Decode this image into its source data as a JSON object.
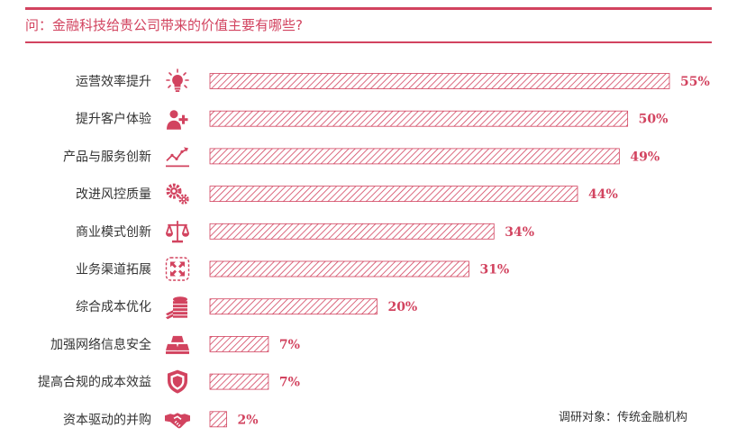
{
  "question": "问：金融科技给贵公司带来的价值主要有哪些?",
  "source_note": "调研对象：传统金融机构",
  "colors": {
    "accent": "#d2435f",
    "text": "#333333"
  },
  "icons": [
    "lightbulb-icon",
    "user-plus-icon",
    "trend-line-icon",
    "gears-icon",
    "scale-icon",
    "expand-arrows-icon",
    "coin-stack-icon",
    "gold-bars-icon",
    "shield-icon",
    "handshake-icon"
  ],
  "chart_data": {
    "type": "bar",
    "orientation": "horizontal",
    "categories": [
      "运营效率提升",
      "提升客户体验",
      "产品与服务创新",
      "改进风控质量",
      "商业模式创新",
      "业务渠道拓展",
      "综合成本优化",
      "加强网络信息安全",
      "提高合规的成本效益",
      "资本驱动的并购"
    ],
    "values": [
      55,
      50,
      49,
      44,
      34,
      31,
      20,
      7,
      7,
      2
    ],
    "value_labels": [
      "55%",
      "50%",
      "49%",
      "44%",
      "34%",
      "31%",
      "20%",
      "7%",
      "7%",
      "2%"
    ],
    "unit": "%",
    "xlim": [
      0,
      55
    ],
    "grid": false,
    "legend": "none"
  }
}
